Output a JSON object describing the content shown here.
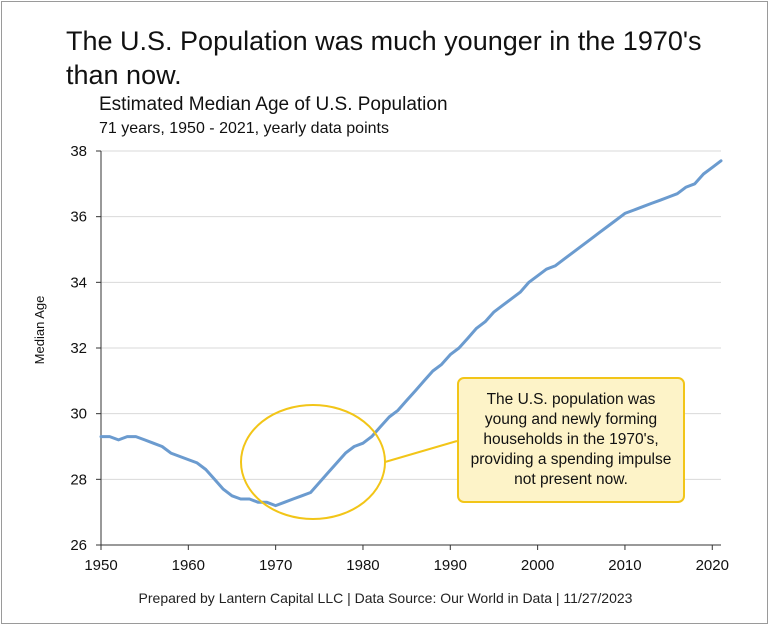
{
  "headline": "The U.S. Population was much younger in the 1970's than now.",
  "footer": "Prepared by Lantern Capital LLC | Data Source: Our World in Data | 11/27/2023",
  "annotation": "The U.S. population was young and newly forming households in the 1970's, providing a spending impulse not present now.",
  "colors": {
    "line": "#6b9bcf",
    "gridline": "#d9d9d9",
    "highlight_circle": "#f2c518",
    "callout_fill": "#fdf3c8"
  },
  "chart_data": {
    "type": "line",
    "title": "Estimated Median Age of U.S. Population",
    "subtitle": "71 years, 1950 - 2021, yearly data points",
    "xlabel": "",
    "ylabel": "Median Age",
    "xlim": [
      1950,
      2021
    ],
    "ylim": [
      26,
      38
    ],
    "x_ticks": [
      1950,
      1960,
      1970,
      1980,
      1990,
      2000,
      2010,
      2020
    ],
    "y_ticks": [
      26,
      28,
      30,
      32,
      34,
      36,
      38
    ],
    "grid": "horizontal",
    "series": [
      {
        "x": [
          1950,
          1951,
          1952,
          1953,
          1954,
          1955,
          1956,
          1957,
          1958,
          1959,
          1960,
          1961,
          1962,
          1963,
          1964,
          1965,
          1966,
          1967,
          1968,
          1969,
          1970,
          1971,
          1972,
          1973,
          1974,
          1975,
          1976,
          1977,
          1978,
          1979,
          1980,
          1981,
          1982,
          1983,
          1984,
          1985,
          1986,
          1987,
          1988,
          1989,
          1990,
          1991,
          1992,
          1993,
          1994,
          1995,
          1996,
          1997,
          1998,
          1999,
          2000,
          2001,
          2002,
          2003,
          2004,
          2005,
          2006,
          2007,
          2008,
          2009,
          2010,
          2011,
          2012,
          2013,
          2014,
          2015,
          2016,
          2017,
          2018,
          2019,
          2020,
          2021
        ],
        "y": [
          29.3,
          29.3,
          29.2,
          29.3,
          29.3,
          29.2,
          29.1,
          29.0,
          28.8,
          28.7,
          28.6,
          28.5,
          28.3,
          28.0,
          27.7,
          27.5,
          27.4,
          27.4,
          27.3,
          27.3,
          27.2,
          27.3,
          27.4,
          27.5,
          27.6,
          27.9,
          28.2,
          28.5,
          28.8,
          29.0,
          29.1,
          29.3,
          29.6,
          29.9,
          30.1,
          30.4,
          30.7,
          31.0,
          31.3,
          31.5,
          31.8,
          32.0,
          32.3,
          32.6,
          32.8,
          33.1,
          33.3,
          33.5,
          33.7,
          34.0,
          34.2,
          34.4,
          34.5,
          34.7,
          34.9,
          35.1,
          35.3,
          35.5,
          35.7,
          35.9,
          36.1,
          36.2,
          36.3,
          36.4,
          36.5,
          36.6,
          36.7,
          36.9,
          37.0,
          37.3,
          37.5,
          37.7
        ]
      }
    ]
  }
}
